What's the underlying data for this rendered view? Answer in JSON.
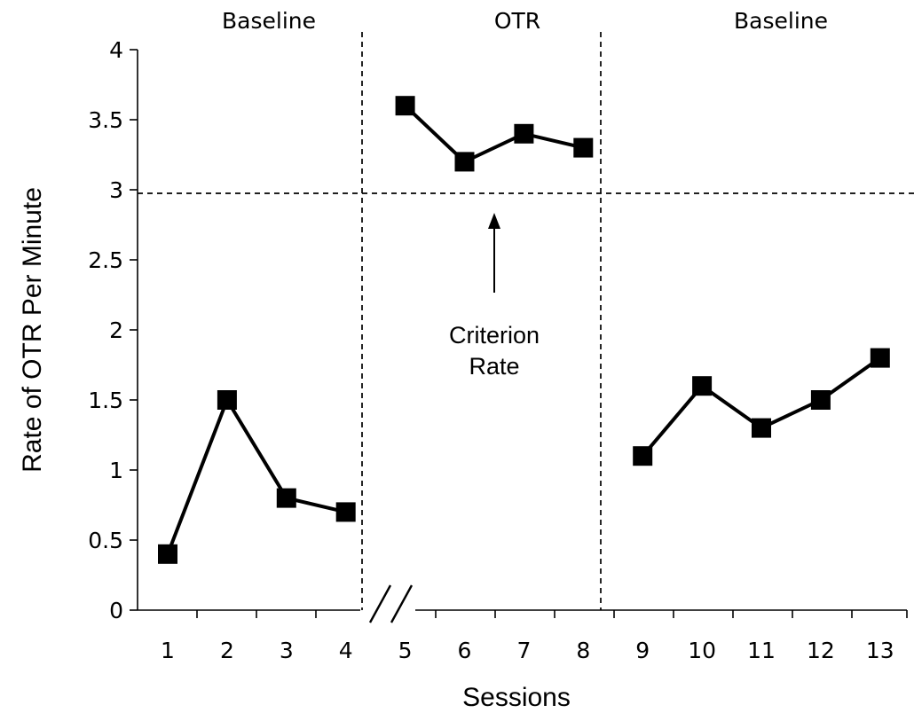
{
  "chart_data": {
    "type": "line",
    "xlabel": "Sessions",
    "ylabel": "Rate of OTR Per Minute",
    "ylim": [
      0,
      4
    ],
    "y_ticks": [
      "0",
      "0.5",
      "1",
      "1.5",
      "2",
      "2.5",
      "3",
      "3.5",
      "4"
    ],
    "x_ticks": [
      "1",
      "2",
      "3",
      "4",
      "5",
      "6",
      "7",
      "8",
      "9",
      "10",
      "11",
      "12",
      "13"
    ],
    "phases": [
      {
        "label": "Baseline",
        "sessions": [
          1,
          2,
          3,
          4
        ],
        "values": [
          0.4,
          1.5,
          0.8,
          0.7
        ]
      },
      {
        "label": "OTR",
        "sessions": [
          5,
          6,
          7,
          8
        ],
        "values": [
          3.6,
          3.2,
          3.4,
          3.3
        ]
      },
      {
        "label": "Baseline",
        "sessions": [
          9,
          10,
          11,
          12,
          13
        ],
        "values": [
          1.1,
          1.6,
          1.3,
          1.5,
          1.8
        ]
      }
    ],
    "phase_change_after_sessions": [
      4,
      8
    ],
    "criterion": {
      "value": 3,
      "label_line1": "Criterion",
      "label_line2": "Rate"
    },
    "axis_break_between_sessions": [
      4,
      5
    ],
    "marker": "filled-square",
    "color": "#000000",
    "grid": false,
    "legend": "none"
  }
}
